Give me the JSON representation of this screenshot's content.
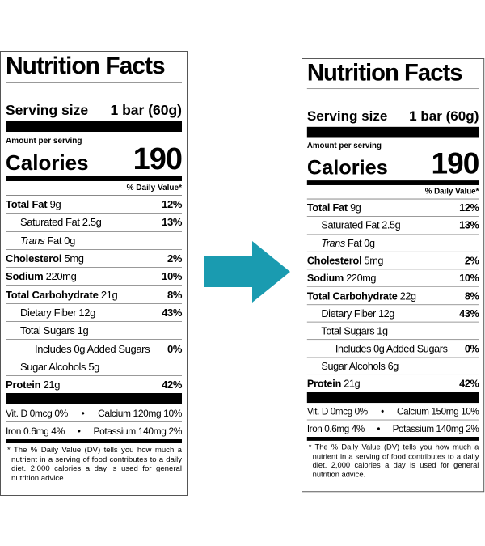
{
  "arrow": {
    "icon": "arrow-right-icon",
    "color": "#1a9bb0"
  },
  "labels": [
    {
      "id": "before",
      "title": "Nutrition Facts",
      "serving_label": "Serving size",
      "serving_value": "1 bar (60g)",
      "amount_per_serving": "Amount per serving",
      "calories_label": "Calories",
      "calories_value": "190",
      "dv_header": "% Daily Value*",
      "rows": [
        {
          "bold": "Total Fat",
          "amount": " 9g",
          "pct": "12%",
          "indent": 0
        },
        {
          "bold": "",
          "amount": "Saturated Fat 2.5g",
          "pct": "13%",
          "indent": 1
        },
        {
          "italic": "Trans",
          "amount": " Fat 0g",
          "pct": "",
          "indent": 1
        },
        {
          "bold": "Cholesterol",
          "amount": " 5mg",
          "pct": "2%",
          "indent": 0
        },
        {
          "bold": "Sodium",
          "amount": " 220mg",
          "pct": "10%",
          "indent": 0
        },
        {
          "bold": "Total Carbohydrate",
          "amount": " 21g",
          "pct": "8%",
          "indent": 0
        },
        {
          "bold": "",
          "amount": "Dietary Fiber 12g",
          "pct": "43%",
          "indent": 1
        },
        {
          "bold": "",
          "amount": "Total Sugars 1g",
          "pct": "",
          "indent": 1
        },
        {
          "bold": "",
          "amount": "Includes 0g Added Sugars",
          "pct": "0%",
          "indent": 2
        },
        {
          "bold": "",
          "amount": "Sugar Alcohols 5g",
          "pct": "",
          "indent": 1
        },
        {
          "bold": "Protein",
          "amount": " 21g",
          "pct": "42%",
          "indent": 0
        }
      ],
      "vitamins": [
        {
          "left": "Vit. D 0mcg 0%",
          "right": "Calcium 120mg 10%"
        },
        {
          "left": "Iron 0.6mg 4%",
          "right": "Potassium 140mg 2%"
        }
      ],
      "bullet": "•",
      "footnote": "* The % Daily Value (DV) tells you how much a nutrient in a serving of food contributes to a daily diet. 2,000 calories a day is used for general nutrition advice."
    },
    {
      "id": "after",
      "title": "Nutrition Facts",
      "serving_label": "Serving size",
      "serving_value": "1 bar (60g)",
      "amount_per_serving": "Amount per serving",
      "calories_label": "Calories",
      "calories_value": "190",
      "dv_header": "% Daily Value*",
      "rows": [
        {
          "bold": "Total Fat",
          "amount": " 9g",
          "pct": "12%",
          "indent": 0
        },
        {
          "bold": "",
          "amount": "Saturated Fat 2.5g",
          "pct": "13%",
          "indent": 1
        },
        {
          "italic": "Trans",
          "amount": " Fat 0g",
          "pct": "",
          "indent": 1
        },
        {
          "bold": "Cholesterol",
          "amount": " 5mg",
          "pct": "2%",
          "indent": 0
        },
        {
          "bold": "Sodium",
          "amount": " 220mg",
          "pct": "10%",
          "indent": 0
        },
        {
          "bold": "Total Carbohydrate",
          "amount": " 22g",
          "pct": "8%",
          "indent": 0
        },
        {
          "bold": "",
          "amount": "Dietary Fiber 12g",
          "pct": "43%",
          "indent": 1
        },
        {
          "bold": "",
          "amount": "Total Sugars 1g",
          "pct": "",
          "indent": 1
        },
        {
          "bold": "",
          "amount": "Includes 0g Added Sugars",
          "pct": "0%",
          "indent": 2
        },
        {
          "bold": "",
          "amount": "Sugar Alcohols 6g",
          "pct": "",
          "indent": 1
        },
        {
          "bold": "Protein",
          "amount": " 21g",
          "pct": "42%",
          "indent": 0
        }
      ],
      "vitamins": [
        {
          "left": "Vit. D 0mcg 0%",
          "right": "Calcium 150mg 10%"
        },
        {
          "left": "Iron 0.6mg 4%",
          "right": "Potassium 140mg 2%"
        }
      ],
      "bullet": "•",
      "footnote": "* The % Daily Value (DV) tells you how much a nutrient in a serving of food contributes to a daily diet. 2,000 calories a day is used for general nutrition advice."
    }
  ]
}
